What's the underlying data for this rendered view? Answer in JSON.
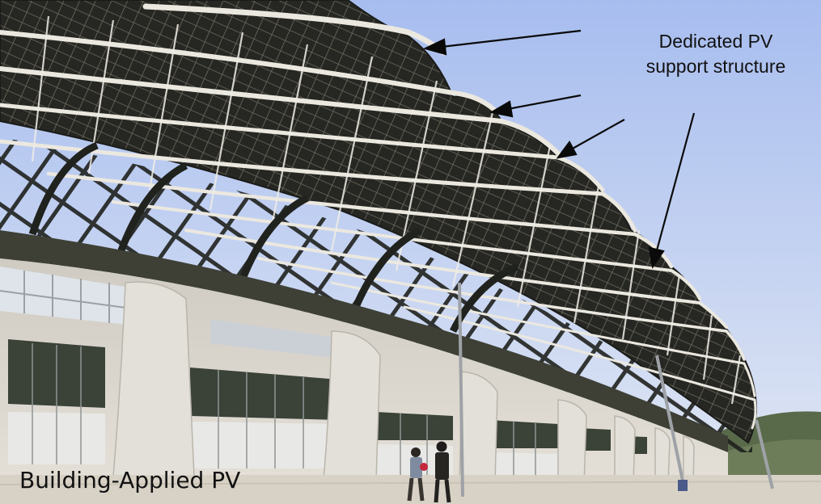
{
  "annotation": {
    "line1": "Dedicated PV",
    "line2": "support structure"
  },
  "caption": "Building-Applied PV",
  "colors": {
    "sky_top": "#a9bff0",
    "sky_bottom": "#dfe6f5",
    "structure_dark": "#22231f",
    "tube_white": "#ece9e2",
    "facade_concrete": "#d6d2c8",
    "window_glass": "#3a4136",
    "plaza_ground": "#d9d3c8",
    "hills": "#5b6b4c"
  },
  "photo": {
    "subject": "stadium-roof-with-solar-panels",
    "people_count": 2,
    "arrow_count": 4
  }
}
